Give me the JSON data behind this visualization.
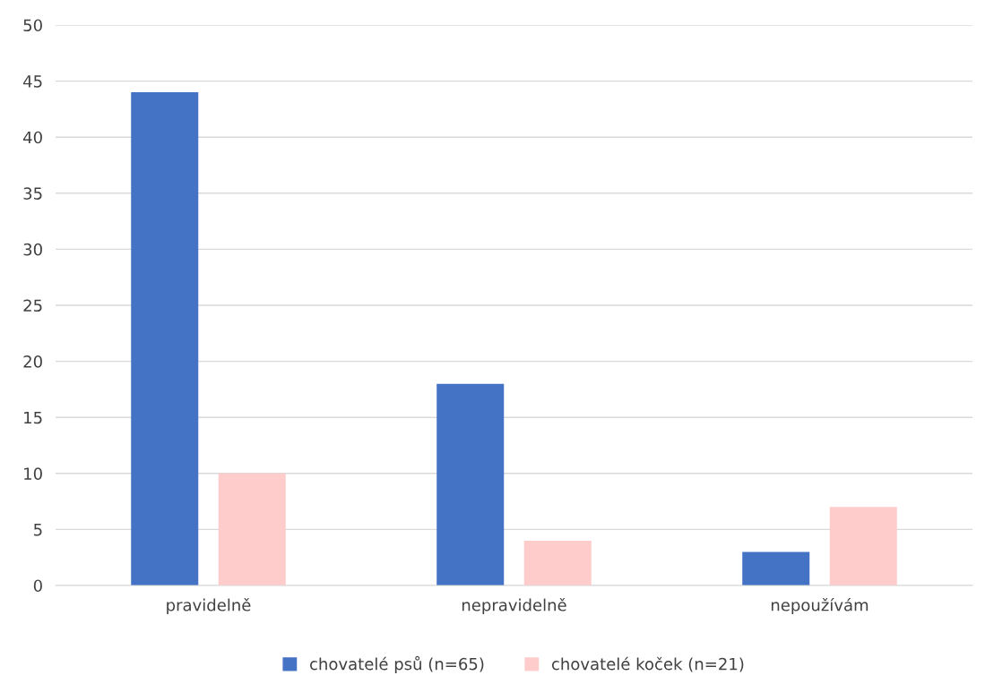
{
  "chart_data": {
    "type": "bar",
    "categories": [
      "pravidelně",
      "nepravidelně",
      "nepoužívám"
    ],
    "series": [
      {
        "name": "chovatelé psů (n=65)",
        "color": "#4472c4",
        "values": [
          44,
          18,
          3
        ]
      },
      {
        "name": "chovatelé koček (n=21)",
        "color": "#ffcccc",
        "values": [
          10,
          4,
          7
        ]
      }
    ],
    "ylim": [
      0,
      50
    ],
    "yticks": [
      0,
      5,
      10,
      15,
      20,
      25,
      30,
      35,
      40,
      45,
      50
    ],
    "grid": "y",
    "legend": "bottom"
  }
}
